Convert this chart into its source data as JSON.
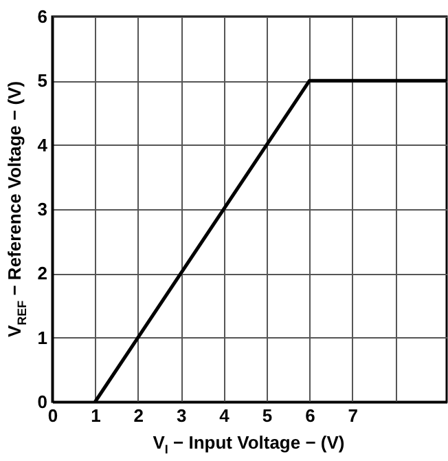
{
  "chart_data": {
    "type": "line",
    "xlabel": "V$_{I}$ − Input Voltage − (V)",
    "ylabel": "V$_{REF}$ − Reference Voltage − (V)",
    "series": [
      {
        "color": "#000000",
        "x": [
          1,
          6,
          9.2
        ],
        "values": [
          0,
          5,
          5
        ]
      }
    ],
    "xlim": [
      0,
      9.2
    ],
    "xticks": [
      0,
      1,
      2,
      3,
      4,
      5,
      6,
      7,
      {
        "value": 8,
        "label": null
      }
    ],
    "ylim": [
      0,
      6
    ],
    "yticks": [
      0,
      1,
      2,
      3,
      4,
      5,
      6
    ],
    "grid": true,
    "marker": "none",
    "line_style": "solid"
  }
}
